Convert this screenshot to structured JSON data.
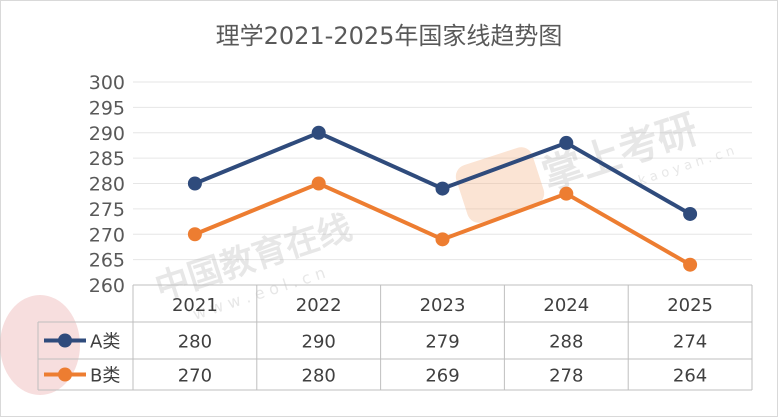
{
  "chart_data": {
    "type": "line",
    "title": "理学2021-2025年国家线趋势图",
    "categories": [
      "2021",
      "2022",
      "2023",
      "2024",
      "2025"
    ],
    "ylim": [
      260,
      300
    ],
    "yticks": [
      260,
      265,
      270,
      275,
      280,
      285,
      290,
      295,
      300
    ],
    "grid": true,
    "legend": "data-table-left",
    "series": [
      {
        "name": "A类",
        "color": "#2F4B7C",
        "values": [
          280,
          290,
          279,
          288,
          274
        ]
      },
      {
        "name": "B类",
        "color": "#ED7D31",
        "values": [
          270,
          280,
          269,
          278,
          264
        ]
      }
    ]
  },
  "watermarks": {
    "eol": {
      "text": "中国教育在线",
      "url": "w w w . e o l . c n"
    },
    "kaoyan": {
      "text": "掌上考研",
      "url": "k a o y a n . c n",
      "badge": "考 研"
    }
  }
}
